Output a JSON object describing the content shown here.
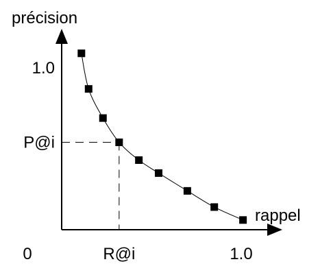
{
  "chart_data": {
    "type": "line",
    "title": "",
    "xlabel": "rappel",
    "ylabel": "précision",
    "origin_label": "0",
    "xlim": [
      0,
      1.0
    ],
    "ylim": [
      0,
      1.0
    ],
    "x_tick_labels": [
      "R@i",
      "1.0"
    ],
    "y_tick_labels": [
      "1.0",
      "P@i"
    ],
    "x_tick_values": [
      0.32,
      1.0
    ],
    "y_tick_values": [
      1.0,
      0.54
    ],
    "reference_point": {
      "x": 0.32,
      "y": 0.54
    },
    "grid": false,
    "series": [
      {
        "x": [
          0.11,
          0.15,
          0.23,
          0.32,
          0.43,
          0.54,
          0.7,
          0.85,
          1.01
        ],
        "y": [
          1.09,
          0.87,
          0.69,
          0.54,
          0.43,
          0.35,
          0.24,
          0.14,
          0.06
        ],
        "marker": "square"
      }
    ],
    "colors": {
      "line": "#000000",
      "marker": "#000000"
    }
  }
}
